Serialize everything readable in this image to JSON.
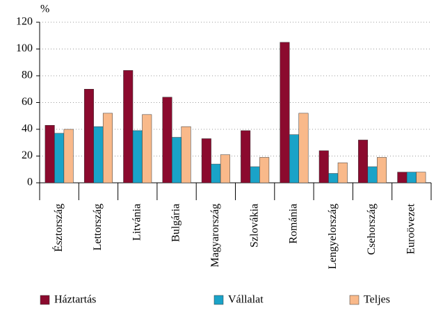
{
  "chart_data": {
    "type": "bar",
    "y_unit": "%",
    "categories": [
      "Észtország",
      "Lettország",
      "Litvánia",
      "Bulgária",
      "Magyarország",
      "Szlovákia",
      "Románia",
      "Lengyelország",
      "Csehország",
      "Euroövezet"
    ],
    "series": [
      {
        "name": "Háztartás",
        "color": "#8b0a2e",
        "values": [
          43,
          70,
          84,
          64,
          33,
          39,
          105,
          24,
          32,
          8
        ]
      },
      {
        "name": "Vállalat",
        "color": "#1aa3c8",
        "values": [
          37,
          42,
          39,
          34,
          14,
          12,
          36,
          7,
          12,
          8
        ]
      },
      {
        "name": "Teljes",
        "color": "#f9b98a",
        "values": [
          40,
          52,
          51,
          42,
          21,
          19,
          52,
          15,
          19,
          8
        ]
      }
    ],
    "ylim": [
      0,
      120
    ],
    "yticks": [
      0,
      20,
      40,
      60,
      80,
      100,
      120
    ],
    "grid": true
  }
}
